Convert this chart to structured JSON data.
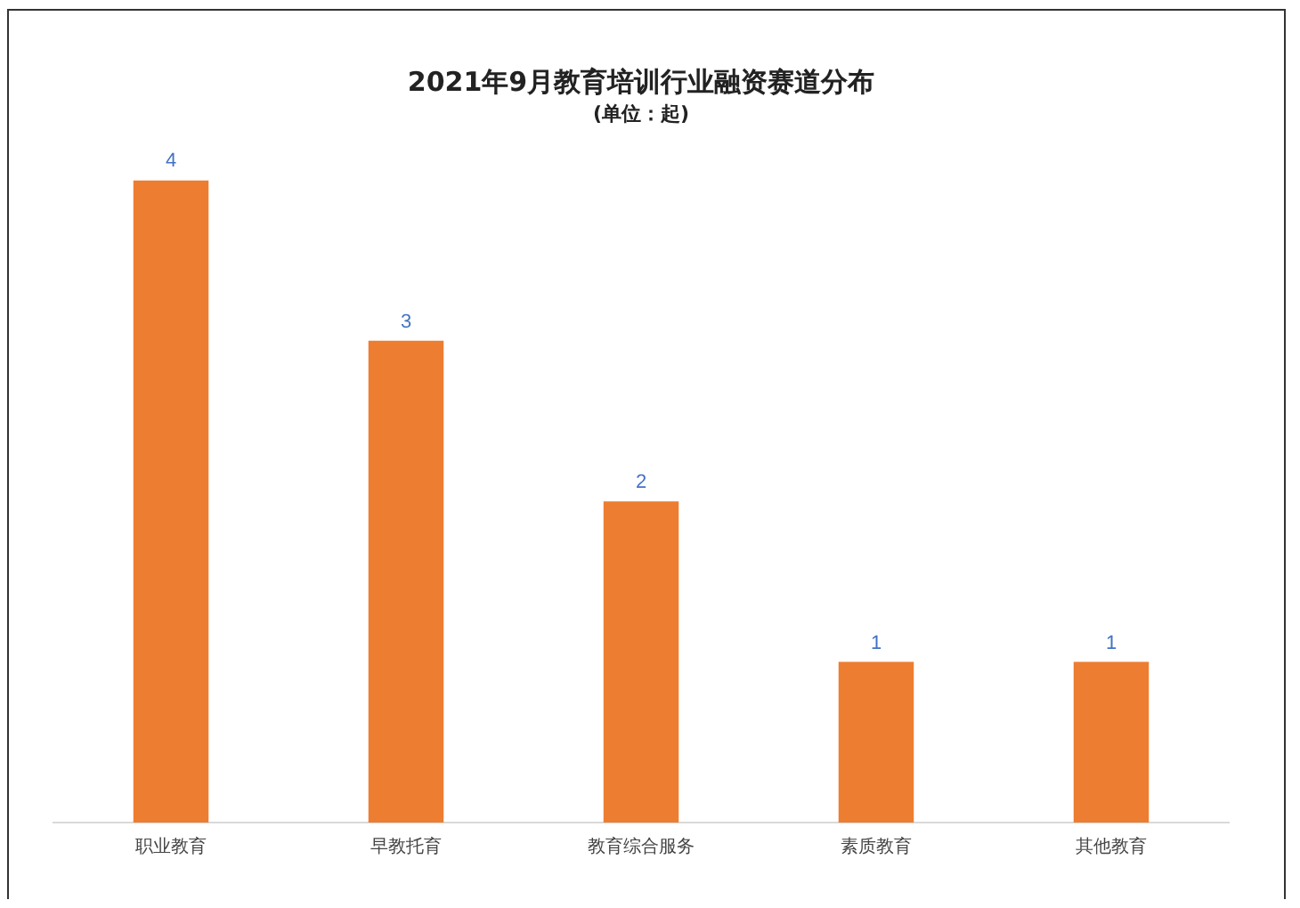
{
  "chart_data": {
    "type": "bar",
    "title": "2021年9月教育培训行业融资赛道分布",
    "subtitle": "(单位：起)",
    "categories": [
      "职业教育",
      "早教托育",
      "教育综合服务",
      "素质教育",
      "其他教育"
    ],
    "values": [
      4,
      3,
      2,
      1,
      1
    ],
    "color": "#ed7d31",
    "data_labels": true,
    "grid": false,
    "legend": false,
    "tick_labels": "x"
  }
}
